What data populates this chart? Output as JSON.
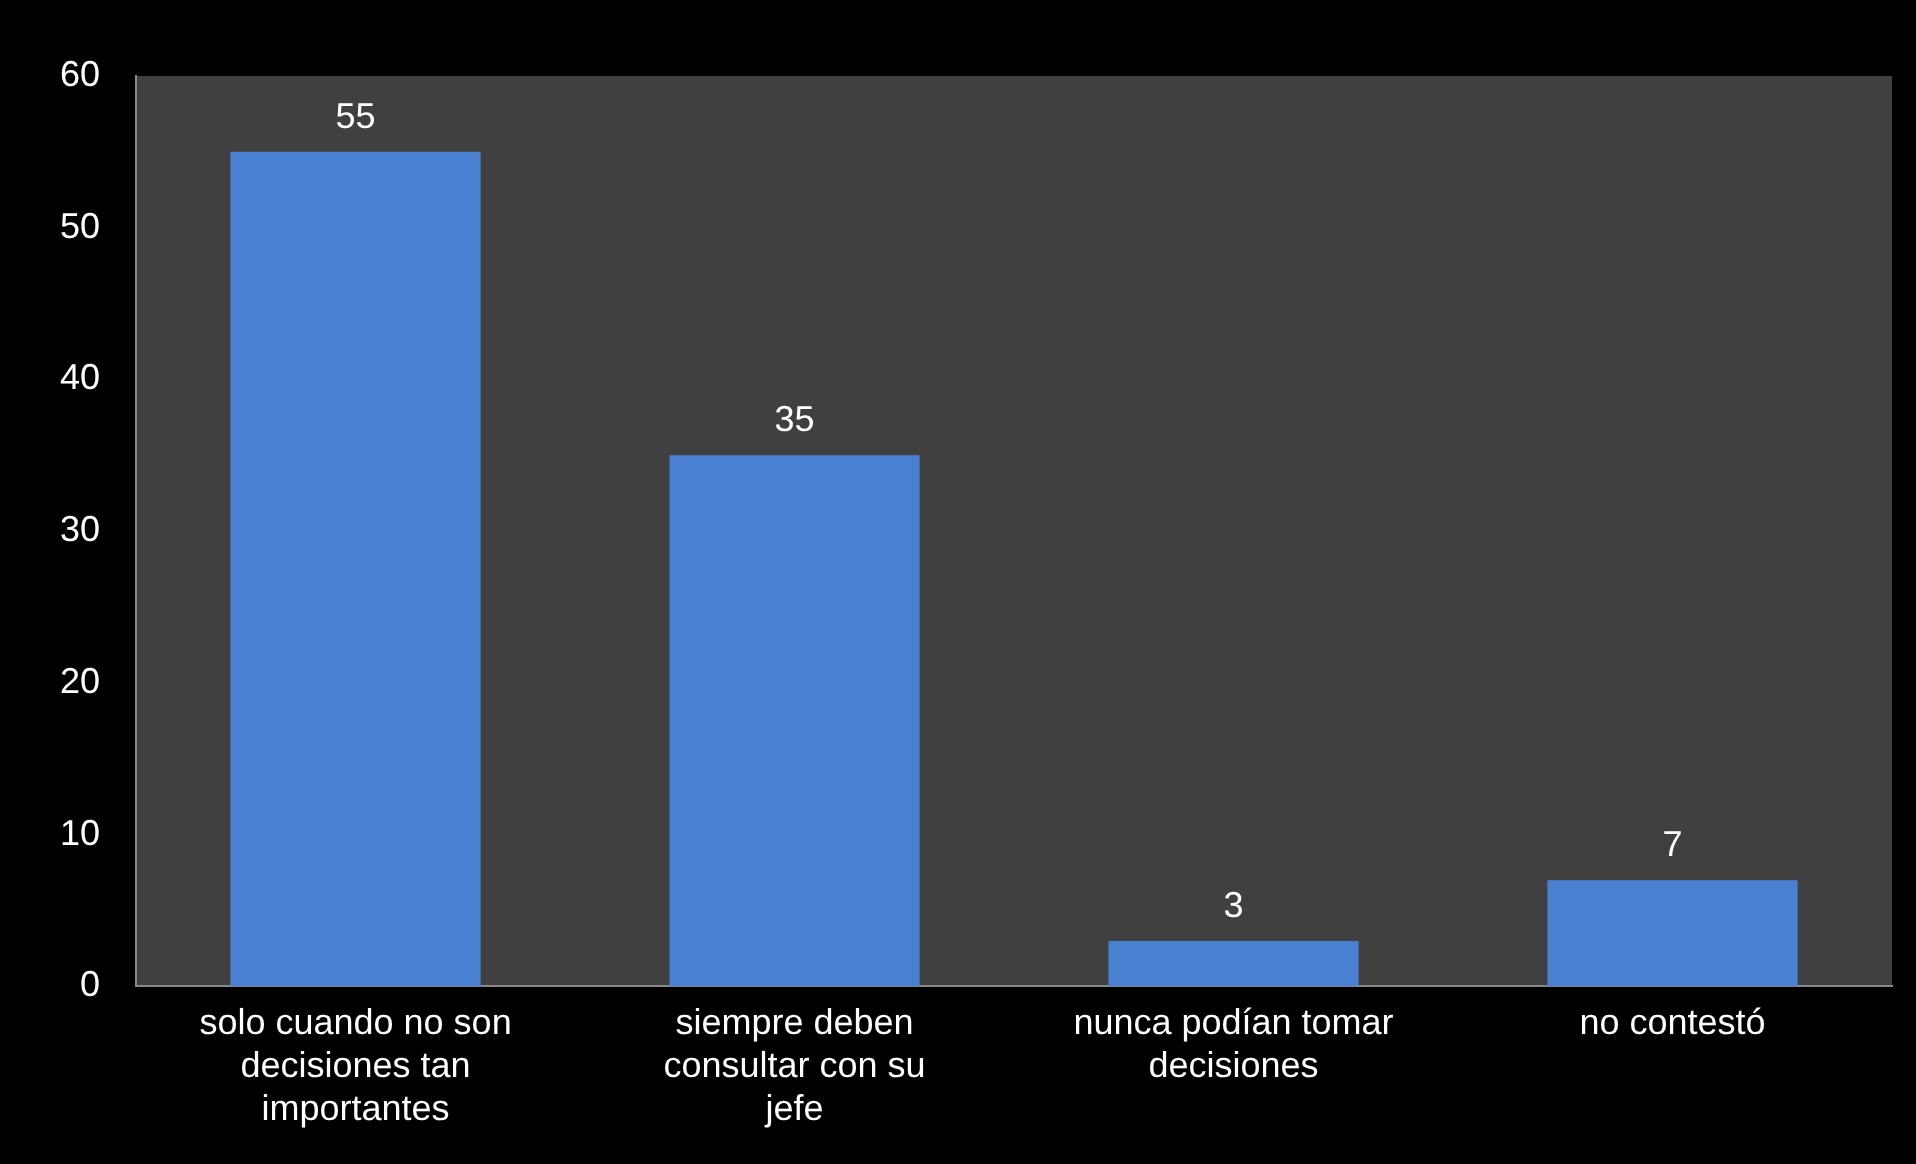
{
  "chart_data": {
    "type": "bar",
    "categories": [
      "solo cuando no son decisiones tan importantes",
      "siempre deben consultar con su jefe",
      "nunca podían tomar decisiones",
      "no contestó"
    ],
    "values": [
      55,
      35,
      3,
      7
    ],
    "color": "#4a80d2",
    "ylim": [
      0,
      60
    ],
    "yticks": [
      0,
      10,
      20,
      30,
      40,
      50,
      60
    ],
    "grid": false,
    "data_labels": true
  }
}
